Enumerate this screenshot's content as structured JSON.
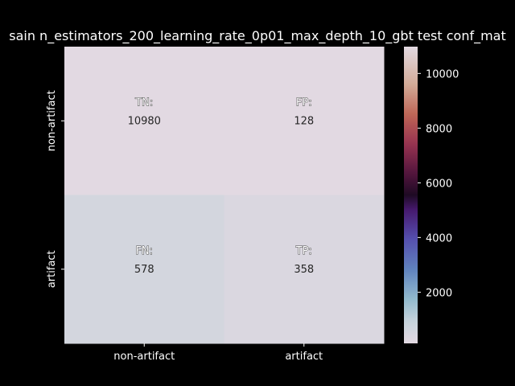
{
  "chart_data": {
    "type": "heatmap",
    "title": "sain n_estimators_200_learning_rate_0p01_max_depth_10_gbt test conf_mat",
    "xlabel": "",
    "ylabel": "",
    "x_categories": [
      "non-artifact",
      "artifact"
    ],
    "y_categories": [
      "non-artifact",
      "artifact"
    ],
    "values": [
      [
        10980,
        128
      ],
      [
        578,
        358
      ]
    ],
    "cell_labels": [
      [
        "TN:",
        "FP:"
      ],
      [
        "FN:",
        "TP:"
      ]
    ],
    "colormap": "twilight",
    "colorbar": {
      "vmin": 128,
      "vmax": 10980,
      "ticks": [
        2000,
        4000,
        6000,
        8000,
        10000
      ],
      "tick_labels": [
        "2000",
        "4000",
        "6000",
        "8000",
        "10000"
      ]
    },
    "background_color": "#000000",
    "text_color": "#ffffff",
    "annotation_color": "#262626"
  }
}
